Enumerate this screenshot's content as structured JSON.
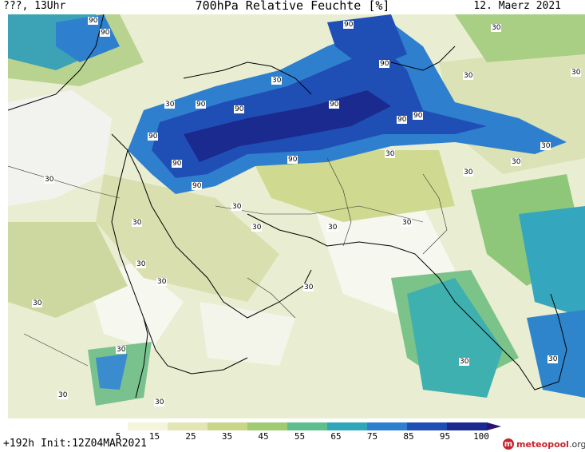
{
  "header": {
    "left": "???, 13Uhr",
    "title": "700hPa Relative Feuchte [%]",
    "right": "12. Maerz 2021"
  },
  "footer": {
    "run_info": "+192h  Init:12Z04MAR2021",
    "logo_name": "meteopool",
    "logo_suffix": ".org"
  },
  "colorbar": {
    "ticks": [
      "5",
      "15",
      "25",
      "35",
      "45",
      "55",
      "65",
      "75",
      "85",
      "95",
      "100"
    ],
    "colors": [
      "#ffffff",
      "#f4f5dc",
      "#e3e6b4",
      "#c9d68a",
      "#9fcb72",
      "#5fbf8c",
      "#2fa7b8",
      "#2f7fcf",
      "#1f4fb4",
      "#1a2a8f",
      "#2a1470"
    ]
  },
  "contour_labels": [
    "90",
    "30"
  ],
  "map": {
    "variable": "700hPa Relative Feuchte",
    "units": "%"
  }
}
